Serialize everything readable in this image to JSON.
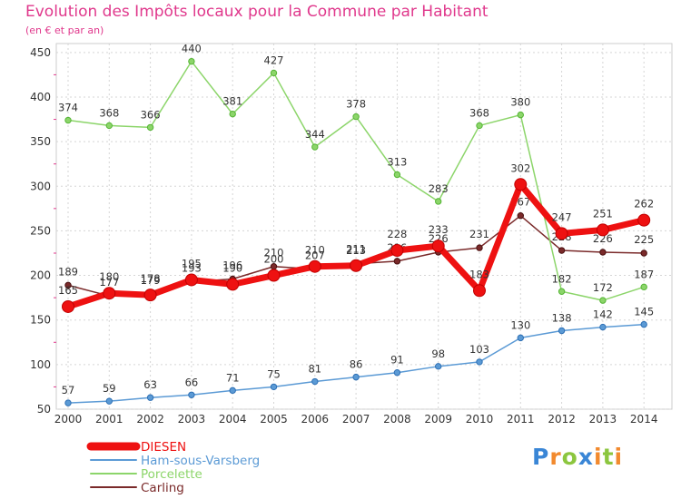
{
  "chart_data": {
    "type": "line",
    "title": "Evolution des Impôts locaux pour la Commune par Habitant",
    "subtitle": "(en € et par an)",
    "xlabel": "",
    "ylabel": "",
    "x": [
      "2000",
      "2001",
      "2002",
      "2003",
      "2004",
      "2005",
      "2006",
      "2007",
      "2008",
      "2009",
      "2010",
      "2011",
      "2012",
      "2013",
      "2014"
    ],
    "ylim": [
      50,
      460
    ],
    "yticks": [
      50,
      100,
      150,
      200,
      250,
      300,
      350,
      400,
      450
    ],
    "grid": true,
    "legend_position": "bottom-left",
    "series": [
      {
        "name": "Carling",
        "color": "#7a2a2a",
        "values": [
          189,
          177,
          179,
          193,
          196,
          210,
          207,
          213,
          216,
          226,
          231,
          267,
          228,
          226,
          225
        ]
      },
      {
        "name": "Porcelette",
        "color": "#8cd56a",
        "values": [
          374,
          368,
          366,
          440,
          381,
          427,
          344,
          378,
          313,
          283,
          368,
          380,
          182,
          172,
          187
        ]
      },
      {
        "name": "Ham-sous-Varsberg",
        "color": "#5b9ad5",
        "values": [
          57,
          59,
          63,
          66,
          71,
          75,
          81,
          86,
          91,
          98,
          103,
          130,
          138,
          142,
          145
        ]
      },
      {
        "name": "DIESEN",
        "color": "#ee1111",
        "values": [
          165,
          180,
          178,
          195,
          190,
          200,
          210,
          211,
          228,
          233,
          183,
          302,
          247,
          251,
          262
        ]
      }
    ]
  },
  "logo": {
    "text": "Proxiti"
  }
}
